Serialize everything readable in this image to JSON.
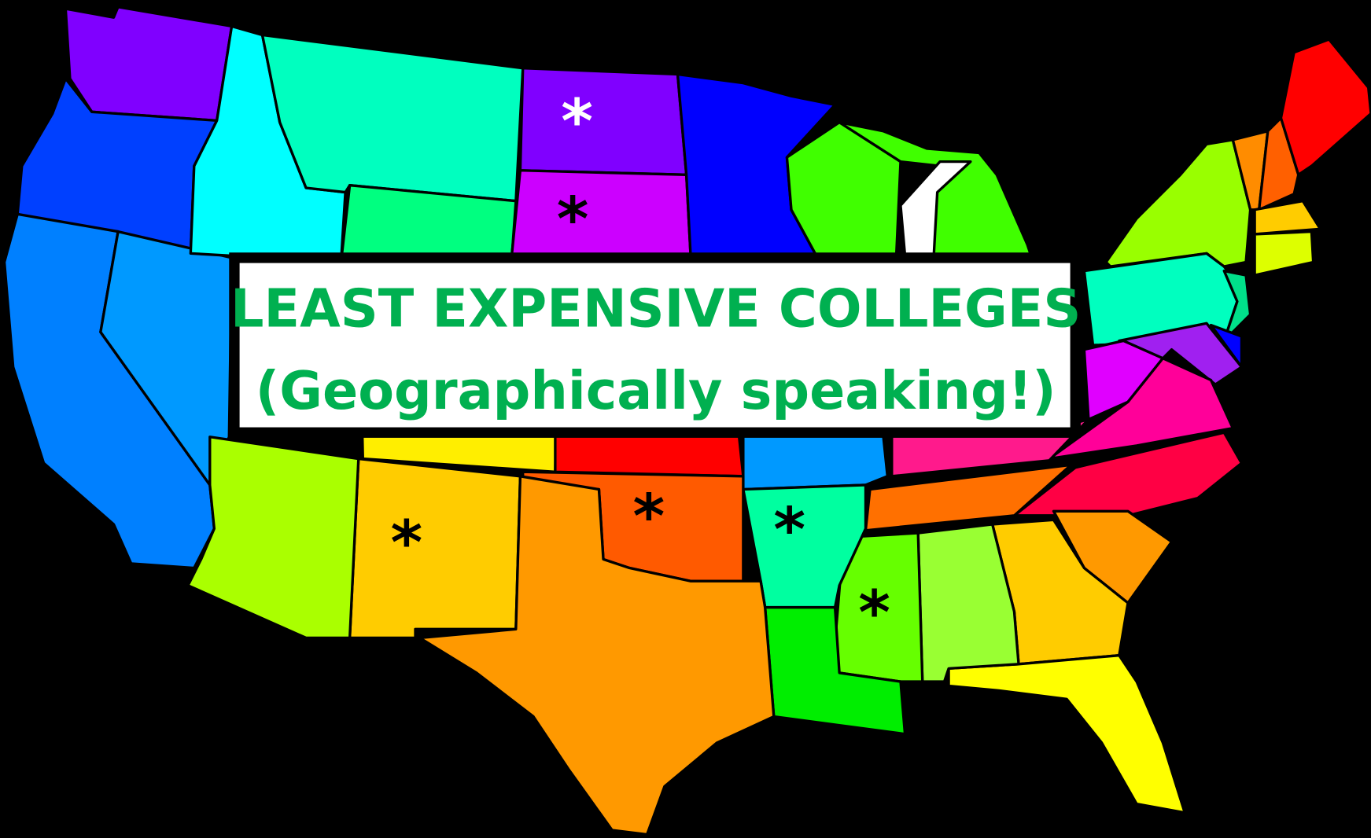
{
  "title": {
    "line1": "LEAST EXPENSIVE COLLEGES",
    "line2": "(Geographically speaking!)",
    "color": "#00b050"
  },
  "map": {
    "background": "#000000",
    "marker_symbol": "*",
    "marked_states": [
      {
        "state": "North Dakota",
        "marker": "*",
        "marker_color": "#ffffff"
      },
      {
        "state": "South Dakota",
        "marker": "*",
        "marker_color": "#000000"
      },
      {
        "state": "New Mexico",
        "marker": "*",
        "marker_color": "#000000"
      },
      {
        "state": "Oklahoma",
        "marker": "*",
        "marker_color": "#000000"
      },
      {
        "state": "Arkansas",
        "marker": "*",
        "marker_color": "#000000"
      },
      {
        "state": "Mississippi",
        "marker": "*",
        "marker_color": "#000000"
      }
    ],
    "state_colors": {
      "WA": "#8000ff",
      "OR": "#0040ff",
      "CA": "#0080ff",
      "NV": "#0099ff",
      "ID": "#00ffff",
      "MT": "#00ffbf",
      "WY": "#00ff80",
      "ND": "#8000ff",
      "SD": "#cc00ff",
      "MN": "#0000ff",
      "WI": "#40ff00",
      "MI": "#40ff00",
      "LAKE": "#ffffff",
      "NY": "#99ff00",
      "PA": "#00ffbf",
      "NJ": "#00e08a",
      "VT": "#ff8c00",
      "NH": "#ff6000",
      "ME": "#ff0000",
      "MA": "#ffcc00",
      "CT": "#ddff00",
      "MD": "#a020f0",
      "DE": "#0000ff",
      "WV": "#e000ff",
      "VA": "#ff0099",
      "KY": "#ff1a8c",
      "NC": "#ff0044",
      "TN": "#ff7000",
      "SC": "#ff9900",
      "GA": "#ffcc00",
      "FL": "#ffff00",
      "AL": "#99ff33",
      "MS": "#66ff00",
      "LA": "#00ee00",
      "AR": "#00ffa0",
      "MO": "#0099ff",
      "OK": "#ff5a00",
      "KS": "#ff0000",
      "CO": "#ffee00",
      "NM": "#ffcc00",
      "TX": "#ff9900",
      "AZ": "#aaff00",
      "UT": "#00ff40"
    }
  }
}
